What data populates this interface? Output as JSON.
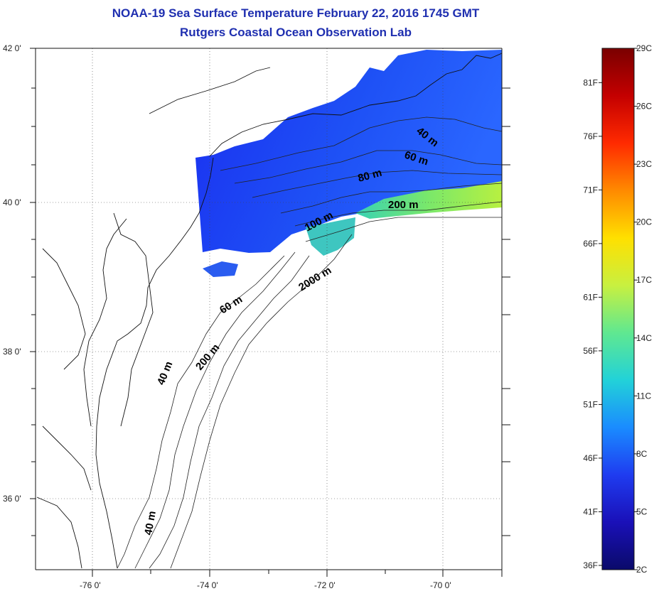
{
  "title": {
    "line1": "NOAA-19 Sea Surface Temperature February 22, 2016 1745 GMT",
    "line2": "Rutgers Coastal Ocean Observation Lab"
  },
  "map": {
    "lat_labels": [
      "42 0'",
      "40 0'",
      "38 0'",
      "36 0'"
    ],
    "lon_labels": [
      "-76 0'",
      "-74 0'",
      "-72 0'",
      "-70 0'"
    ],
    "contour_labels": [
      "40 m",
      "60 m",
      "80 m",
      "200 m",
      "100 m",
      "2000 m",
      "60 m",
      "200 m",
      "40 m",
      "40 m"
    ]
  },
  "colorbar": {
    "celsius_labels": [
      "29C",
      "26C",
      "23C",
      "20C",
      "17C",
      "14C",
      "11C",
      "8C",
      "5C",
      "2C"
    ],
    "fahrenheit_labels": [
      "81F",
      "76F",
      "71F",
      "66F",
      "61F",
      "56F",
      "51F",
      "46F",
      "41F",
      "36F"
    ],
    "colors": [
      "#7a0000",
      "#c40000",
      "#ff2a00",
      "#ff8a00",
      "#ffe000",
      "#c8f040",
      "#60e890",
      "#22d2d8",
      "#1a8cff",
      "#1f3cf0",
      "#1a10b8",
      "#0a0a6a"
    ]
  }
}
